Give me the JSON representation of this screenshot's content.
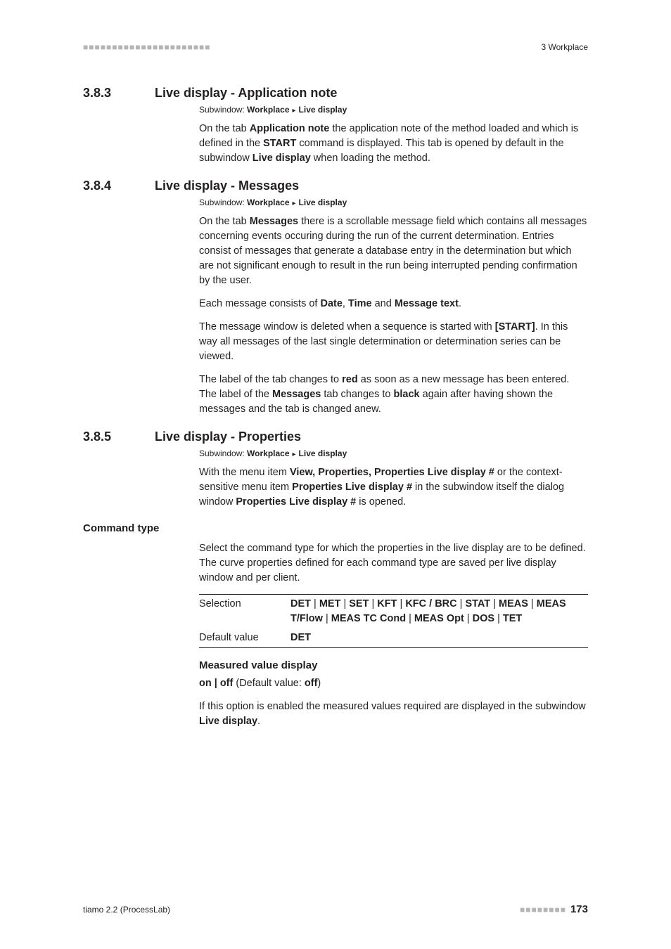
{
  "header": {
    "left_dots": "■■■■■■■■■■■■■■■■■■■■■■",
    "chapter": "3 Workplace"
  },
  "sections": [
    {
      "num": "3.8.3",
      "title": "Live display - Application note",
      "crumb_label": "Subwindow:",
      "crumb_1": "Workplace",
      "crumb_2": "Live display",
      "paras": [
        {
          "parts": [
            {
              "t": "On the tab "
            },
            {
              "t": "Application note",
              "b": true
            },
            {
              "t": " the application note of the method loaded and which is defined in the "
            },
            {
              "t": "START",
              "b": true
            },
            {
              "t": " command is displayed. This tab is opened by default in the subwindow "
            },
            {
              "t": "Live display",
              "b": true
            },
            {
              "t": " when loading the method."
            }
          ]
        }
      ]
    },
    {
      "num": "3.8.4",
      "title": "Live display - Messages",
      "crumb_label": "Subwindow:",
      "crumb_1": "Workplace",
      "crumb_2": "Live display",
      "paras": [
        {
          "parts": [
            {
              "t": "On the tab "
            },
            {
              "t": "Messages",
              "b": true
            },
            {
              "t": " there is a scrollable message field which contains all messages concerning events occuring during the run of the current determination. Entries consist of messages that generate a database entry in the determination but which are not significant enough to result in the run being interrupted pending confirmation by the user."
            }
          ]
        },
        {
          "parts": [
            {
              "t": "Each message consists of "
            },
            {
              "t": "Date",
              "b": true
            },
            {
              "t": ", "
            },
            {
              "t": "Time",
              "b": true
            },
            {
              "t": " and "
            },
            {
              "t": "Message text",
              "b": true
            },
            {
              "t": "."
            }
          ]
        },
        {
          "parts": [
            {
              "t": "The message window is deleted when a sequence is started with "
            },
            {
              "t": "[START]",
              "b": true
            },
            {
              "t": ". In this way all messages of the last single determination or determination series can be viewed."
            }
          ]
        },
        {
          "parts": [
            {
              "t": "The label of the tab changes to "
            },
            {
              "t": "red",
              "b": true
            },
            {
              "t": " as soon as a new message has been entered. The label of the "
            },
            {
              "t": "Messages",
              "b": true
            },
            {
              "t": " tab changes to "
            },
            {
              "t": "black",
              "b": true
            },
            {
              "t": " again after having shown the messages and the tab is changed anew."
            }
          ]
        }
      ]
    },
    {
      "num": "3.8.5",
      "title": "Live display - Properties",
      "crumb_label": "Subwindow:",
      "crumb_1": "Workplace",
      "crumb_2": "Live display",
      "paras": [
        {
          "parts": [
            {
              "t": "With the menu item "
            },
            {
              "t": "View, Properties, Properties Live display #",
              "b": true
            },
            {
              "t": " or the context-sensitive menu item "
            },
            {
              "t": "Properties Live display #",
              "b": true
            },
            {
              "t": " in the subwindow itself the dialog window "
            },
            {
              "t": "Properties Live display #",
              "b": true
            },
            {
              "t": " is opened."
            }
          ]
        }
      ]
    }
  ],
  "command_type": {
    "label": "Command type",
    "intro": "Select the command type for which the properties in the live display are to be defined. The curve properties defined for each command type are saved per live display window and per client.",
    "rows": [
      {
        "key": "Selection",
        "opts": [
          "DET",
          "MET",
          "SET",
          "KFT",
          "KFC / BRC",
          "STAT",
          "MEAS",
          "MEAS T/Flow",
          "MEAS TC Cond",
          "MEAS Opt",
          "DOS",
          "TET"
        ]
      },
      {
        "key": "Default value",
        "val": "DET"
      }
    ]
  },
  "measured": {
    "heading": "Measured value display",
    "line_parts": [
      {
        "t": "on | off",
        "b": true
      },
      {
        "t": " (Default value: "
      },
      {
        "t": "off",
        "b": true
      },
      {
        "t": ")"
      }
    ],
    "para_parts": [
      {
        "t": "If this option is enabled the measured values required are displayed in the subwindow "
      },
      {
        "t": "Live display",
        "b": true
      },
      {
        "t": "."
      }
    ]
  },
  "footer": {
    "left": "tiamo 2.2 (ProcessLab)",
    "dots": "■■■■■■■■",
    "page": "173"
  }
}
